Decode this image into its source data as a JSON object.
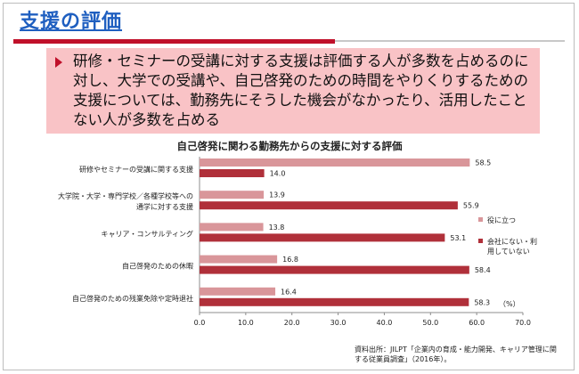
{
  "slide": {
    "title": "支援の評価",
    "bullet": "研修・セミナーの受講に対する支援は評価する人が多数を占めるのに対し、大学での受講や、自己啓発のための時間をやりくりするための支援については、勤務先にそうした機会がなかったり、活用したことない人が多数を占める",
    "source": "資料出所：JILPT「企業内の育成・能力開発、キャリア管理に関する従業員調査」（2016年）。"
  },
  "colors": {
    "accent_red": "#c0102a",
    "title_blue": "#1f5fc0",
    "callout_bg": "#f9c3c6",
    "series_helpful": "#d9969a",
    "series_unavailable": "#b0303a"
  },
  "chart_data": {
    "type": "bar",
    "orientation": "horizontal",
    "title": "自己啓発に関わる勤務先からの支援に対する評価",
    "unit_label": "（%）",
    "categories": [
      "研修やセミナーの受講に関する支援",
      [
        "大学院・大学・専門学校／各種学校等への",
        "通学に対する支援"
      ],
      "キャリア・コンサルティング",
      "自己啓発のための休暇",
      "自己啓発のための残業免除や定時退社"
    ],
    "series": [
      {
        "name": "役に立つ",
        "values": [
          58.5,
          13.9,
          13.8,
          16.8,
          16.4
        ]
      },
      {
        "name": [
          "会社にない・利",
          "用していない"
        ],
        "values": [
          14.0,
          55.9,
          53.1,
          58.4,
          58.3
        ]
      }
    ],
    "xlim": [
      0,
      70
    ],
    "xticks": [
      "0.0",
      "10.0",
      "20.0",
      "30.0",
      "40.0",
      "50.0",
      "60.0",
      "70.0"
    ],
    "legend_position": "right",
    "grid": false
  }
}
